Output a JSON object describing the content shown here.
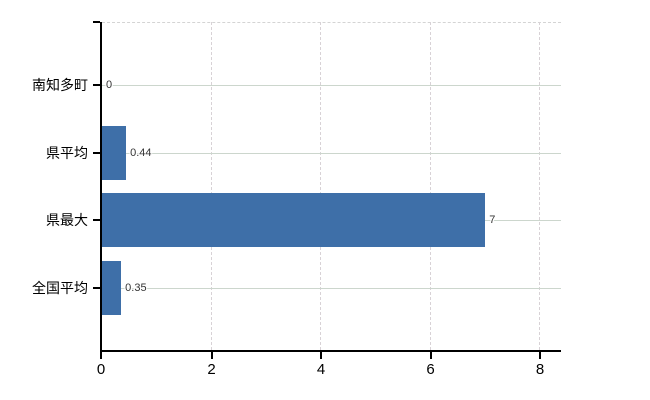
{
  "chart_data": {
    "type": "bar",
    "orientation": "horizontal",
    "title": "",
    "xlabel": "",
    "ylabel": "",
    "categories": [
      "南知多町",
      "県平均",
      "県最大",
      "全国平均"
    ],
    "values": [
      0,
      0.44,
      7,
      0.35
    ],
    "value_labels": [
      "0",
      "0.44",
      "7",
      "0.35"
    ],
    "x_ticks": [
      "0",
      "2",
      "4",
      "6",
      "8"
    ],
    "x_tick_values": [
      0,
      2,
      4,
      6,
      8
    ],
    "xlim": [
      0,
      8.4
    ],
    "grid": true,
    "legend": "none",
    "bar_color": "#3e6fa8"
  },
  "colors": {
    "background": "#ffffff",
    "bar": "#3e6fa8",
    "axis": "#000000",
    "horizontal_gridline": "#ccd6cd",
    "vertical_gridline": "#d8d2d6",
    "value_label_text": "#333333",
    "tick_label_text": "#000000"
  }
}
